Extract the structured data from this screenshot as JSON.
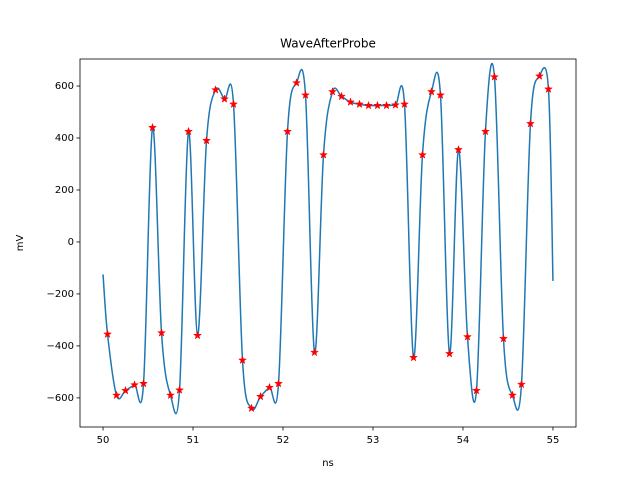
{
  "chart_data": {
    "type": "line",
    "title": "WaveAfterProbe",
    "x_label": "ns",
    "y_label": "mV",
    "xlim": [
      49.744,
      55.256
    ],
    "ylim": [
      -712,
      704
    ],
    "xticks": [
      50,
      51,
      52,
      53,
      54,
      55
    ],
    "yticks": [
      {
        "value": -600,
        "label": "−600"
      },
      {
        "value": -400,
        "label": "−400"
      },
      {
        "value": -200,
        "label": "−200"
      },
      0,
      200,
      400,
      600
    ],
    "series": [
      {
        "color": "#1f77b4",
        "style": "line",
        "x": [
          50.0,
          50.05,
          50.15,
          50.25,
          50.35,
          50.45,
          50.55,
          50.65,
          50.75,
          50.85,
          50.95,
          51.05,
          51.15,
          51.25,
          51.35,
          51.45,
          51.55,
          51.65,
          51.75,
          51.85,
          51.95,
          52.05,
          52.15,
          52.25,
          52.35,
          52.45,
          52.55,
          52.65,
          52.75,
          52.85,
          52.95,
          53.05,
          53.15,
          53.25,
          53.35,
          53.45,
          53.55,
          53.65,
          53.75,
          53.85,
          53.95,
          54.05,
          54.15,
          54.25,
          54.35,
          54.45,
          54.55,
          54.65,
          54.75,
          54.85,
          54.95,
          55.0
        ],
        "values": [
          -125,
          -355,
          -590,
          -572,
          -550,
          -545,
          440,
          -350,
          -590,
          -570,
          425,
          -360,
          390,
          585,
          550,
          530,
          -455,
          -640,
          -595,
          -560,
          -545,
          425,
          612,
          565,
          -425,
          335,
          578,
          560,
          538,
          530,
          525,
          525,
          525,
          527,
          530,
          -445,
          335,
          578,
          565,
          -430,
          355,
          -365,
          -572,
          425,
          635,
          -372,
          -590,
          -548,
          455,
          638,
          588,
          -150
        ]
      },
      {
        "color": "#ff0000",
        "style": "marker",
        "x": [
          50.05,
          50.15,
          50.25,
          50.35,
          50.45,
          50.55,
          50.65,
          50.75,
          50.85,
          50.95,
          51.05,
          51.15,
          51.25,
          51.35,
          51.45,
          51.55,
          51.65,
          51.75,
          51.85,
          51.95,
          52.05,
          52.15,
          52.25,
          52.35,
          52.45,
          52.55,
          52.65,
          52.75,
          52.85,
          52.95,
          53.05,
          53.15,
          53.25,
          53.35,
          53.45,
          53.55,
          53.65,
          53.75,
          53.85,
          53.95,
          54.05,
          54.15,
          54.25,
          54.35,
          54.45,
          54.55,
          54.65,
          54.75,
          54.85,
          54.95
        ],
        "values": [
          -355,
          -590,
          -572,
          -550,
          -545,
          440,
          -350,
          -590,
          -570,
          425,
          -360,
          390,
          585,
          550,
          530,
          -455,
          -640,
          -595,
          -560,
          -545,
          425,
          612,
          565,
          -425,
          335,
          578,
          560,
          538,
          530,
          525,
          525,
          525,
          527,
          530,
          -445,
          335,
          578,
          565,
          -430,
          355,
          -365,
          -572,
          425,
          635,
          -372,
          -590,
          -548,
          455,
          638,
          588
        ]
      }
    ]
  }
}
